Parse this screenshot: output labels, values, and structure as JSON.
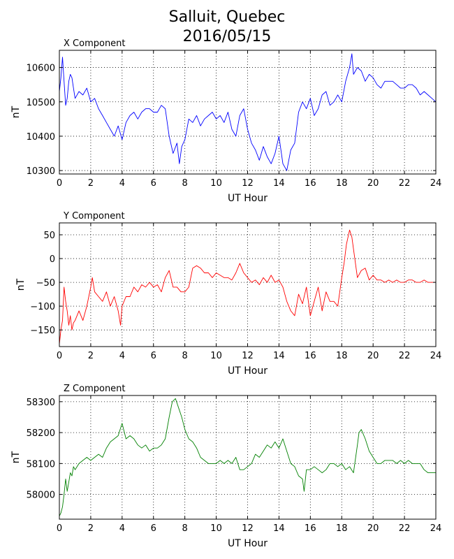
{
  "figure": {
    "title_line1": "Salluit, Quebec",
    "title_line2": "2016/05/15"
  },
  "chart_data": [
    {
      "type": "line",
      "title": "X Component",
      "xlabel": "UT Hour",
      "ylabel": "nT",
      "xlim": [
        0,
        24
      ],
      "ylim": [
        10290,
        10650
      ],
      "xticks": [
        0,
        2,
        4,
        6,
        8,
        10,
        12,
        14,
        16,
        18,
        20,
        22,
        24
      ],
      "yticks": [
        10300,
        10400,
        10500,
        10600
      ],
      "grid": true,
      "color": "#0000ff",
      "series": [
        {
          "x": [
            0,
            0.1,
            0.2,
            0.3,
            0.4,
            0.5,
            0.6,
            0.7,
            0.8,
            0.9,
            1.0,
            1.25,
            1.5,
            1.75,
            2.0,
            2.25,
            2.5,
            2.75,
            3.0,
            3.25,
            3.5,
            3.75,
            4.0,
            4.25,
            4.5,
            4.75,
            5.0,
            5.25,
            5.5,
            5.75,
            6.0,
            6.25,
            6.5,
            6.75,
            7.0,
            7.25,
            7.5,
            7.65,
            7.8,
            8.0,
            8.25,
            8.5,
            8.75,
            9.0,
            9.25,
            9.5,
            9.75,
            10.0,
            10.25,
            10.5,
            10.75,
            11.0,
            11.25,
            11.5,
            11.75,
            12.0,
            12.25,
            12.5,
            12.75,
            13.0,
            13.25,
            13.5,
            13.75,
            14.0,
            14.25,
            14.5,
            14.75,
            15.0,
            15.25,
            15.5,
            15.75,
            16.0,
            16.25,
            16.5,
            16.75,
            17.0,
            17.25,
            17.5,
            17.75,
            18.0,
            18.25,
            18.5,
            18.65,
            18.75,
            19.0,
            19.25,
            19.5,
            19.75,
            20.0,
            20.25,
            20.5,
            20.75,
            21.0,
            21.25,
            21.5,
            21.75,
            22.0,
            22.25,
            22.5,
            22.75,
            23.0,
            23.25,
            23.5,
            23.75,
            24.0
          ],
          "y": [
            10530,
            10570,
            10630,
            10560,
            10490,
            10510,
            10560,
            10580,
            10570,
            10540,
            10510,
            10530,
            10520,
            10540,
            10500,
            10510,
            10480,
            10460,
            10440,
            10420,
            10400,
            10430,
            10390,
            10440,
            10460,
            10470,
            10450,
            10470,
            10480,
            10480,
            10470,
            10470,
            10490,
            10480,
            10400,
            10350,
            10380,
            10320,
            10370,
            10390,
            10450,
            10440,
            10460,
            10430,
            10450,
            10460,
            10470,
            10450,
            10460,
            10440,
            10470,
            10420,
            10400,
            10460,
            10480,
            10420,
            10380,
            10360,
            10330,
            10370,
            10340,
            10320,
            10350,
            10400,
            10320,
            10300,
            10360,
            10380,
            10470,
            10500,
            10480,
            10510,
            10460,
            10480,
            10520,
            10530,
            10490,
            10500,
            10520,
            10500,
            10560,
            10600,
            10640,
            10580,
            10600,
            10590,
            10560,
            10580,
            10570,
            10550,
            10540,
            10560,
            10560,
            10560,
            10550,
            10540,
            10540,
            10550,
            10550,
            10540,
            10520,
            10530,
            10520,
            10510,
            10500
          ]
        }
      ]
    },
    {
      "type": "line",
      "title": "Y Component",
      "xlabel": "UT Hour",
      "ylabel": "nT",
      "xlim": [
        0,
        24
      ],
      "ylim": [
        -185,
        75
      ],
      "xticks": [
        0,
        2,
        4,
        6,
        8,
        10,
        12,
        14,
        16,
        18,
        20,
        22,
        24
      ],
      "yticks": [
        -150,
        -100,
        -50,
        0,
        50
      ],
      "grid": true,
      "color": "#ff0000",
      "series": [
        {
          "x": [
            0,
            0.1,
            0.2,
            0.3,
            0.4,
            0.5,
            0.6,
            0.7,
            0.8,
            0.9,
            1.0,
            1.25,
            1.5,
            1.75,
            2.0,
            2.1,
            2.25,
            2.5,
            2.75,
            3.0,
            3.25,
            3.5,
            3.75,
            3.9,
            4.0,
            4.25,
            4.5,
            4.75,
            5.0,
            5.25,
            5.5,
            5.75,
            6.0,
            6.25,
            6.5,
            6.75,
            7.0,
            7.25,
            7.5,
            7.75,
            8.0,
            8.25,
            8.5,
            8.75,
            9.0,
            9.25,
            9.5,
            9.75,
            10.0,
            10.25,
            10.5,
            10.75,
            11.0,
            11.25,
            11.5,
            11.75,
            12.0,
            12.25,
            12.5,
            12.75,
            13.0,
            13.25,
            13.5,
            13.75,
            14.0,
            14.25,
            14.5,
            14.75,
            15.0,
            15.25,
            15.5,
            15.75,
            16.0,
            16.25,
            16.5,
            16.75,
            17.0,
            17.25,
            17.5,
            17.75,
            18.0,
            18.15,
            18.3,
            18.5,
            18.65,
            18.75,
            19.0,
            19.25,
            19.5,
            19.75,
            20.0,
            20.25,
            20.5,
            20.75,
            21.0,
            21.25,
            21.5,
            21.75,
            22.0,
            22.25,
            22.5,
            22.75,
            23.0,
            23.25,
            23.5,
            23.75,
            24.0
          ],
          "y": [
            -180,
            -150,
            -130,
            -60,
            -90,
            -110,
            -140,
            -120,
            -150,
            -135,
            -130,
            -110,
            -130,
            -100,
            -60,
            -40,
            -70,
            -80,
            -90,
            -70,
            -100,
            -80,
            -110,
            -140,
            -100,
            -80,
            -80,
            -60,
            -70,
            -55,
            -60,
            -50,
            -60,
            -55,
            -70,
            -40,
            -25,
            -60,
            -60,
            -70,
            -70,
            -60,
            -20,
            -15,
            -20,
            -30,
            -30,
            -40,
            -30,
            -35,
            -40,
            -40,
            -45,
            -30,
            -10,
            -30,
            -40,
            -50,
            -45,
            -55,
            -40,
            -50,
            -35,
            -50,
            -45,
            -60,
            -90,
            -110,
            -120,
            -75,
            -95,
            -60,
            -120,
            -90,
            -60,
            -110,
            -70,
            -90,
            -90,
            -100,
            -40,
            -10,
            30,
            60,
            45,
            20,
            -40,
            -25,
            -20,
            -45,
            -35,
            -45,
            -45,
            -50,
            -45,
            -50,
            -45,
            -50,
            -50,
            -45,
            -45,
            -50,
            -50,
            -45,
            -50,
            -50,
            -50
          ]
        }
      ]
    },
    {
      "type": "line",
      "title": "Z Component",
      "xlabel": "UT Hour",
      "ylabel": "nT",
      "xlim": [
        0,
        24
      ],
      "ylim": [
        57920,
        58320
      ],
      "xticks": [
        0,
        2,
        4,
        6,
        8,
        10,
        12,
        14,
        16,
        18,
        20,
        22,
        24
      ],
      "yticks": [
        58000,
        58100,
        58200,
        58300
      ],
      "grid": true,
      "color": "#008000",
      "series": [
        {
          "x": [
            0,
            0.1,
            0.2,
            0.3,
            0.4,
            0.5,
            0.6,
            0.7,
            0.8,
            0.9,
            1.0,
            1.25,
            1.5,
            1.75,
            2.0,
            2.25,
            2.5,
            2.75,
            3.0,
            3.25,
            3.5,
            3.75,
            4.0,
            4.25,
            4.5,
            4.75,
            5.0,
            5.25,
            5.5,
            5.75,
            6.0,
            6.25,
            6.5,
            6.75,
            7.0,
            7.2,
            7.4,
            7.6,
            7.8,
            8.0,
            8.25,
            8.5,
            8.75,
            9.0,
            9.25,
            9.5,
            9.75,
            10.0,
            10.25,
            10.5,
            10.75,
            11.0,
            11.25,
            11.5,
            11.75,
            12.0,
            12.25,
            12.5,
            12.75,
            13.0,
            13.25,
            13.5,
            13.75,
            14.0,
            14.25,
            14.5,
            14.75,
            15.0,
            15.25,
            15.5,
            15.6,
            15.75,
            16.0,
            16.25,
            16.5,
            16.75,
            17.0,
            17.25,
            17.5,
            17.75,
            18.0,
            18.25,
            18.5,
            18.75,
            19.0,
            19.1,
            19.25,
            19.5,
            19.75,
            20.0,
            20.25,
            20.5,
            20.75,
            21.0,
            21.25,
            21.5,
            21.75,
            22.0,
            22.25,
            22.5,
            22.75,
            23.0,
            23.25,
            23.5,
            23.75,
            24.0
          ],
          "y": [
            57930,
            57940,
            57960,
            58000,
            58050,
            58010,
            58040,
            58070,
            58060,
            58090,
            58080,
            58100,
            58110,
            58120,
            58110,
            58120,
            58130,
            58120,
            58150,
            58170,
            58180,
            58190,
            58230,
            58180,
            58190,
            58180,
            58160,
            58150,
            58160,
            58140,
            58150,
            58150,
            58160,
            58180,
            58250,
            58300,
            58310,
            58280,
            58250,
            58210,
            58180,
            58170,
            58150,
            58120,
            58110,
            58100,
            58100,
            58100,
            58110,
            58100,
            58110,
            58100,
            58120,
            58080,
            58080,
            58090,
            58100,
            58130,
            58120,
            58140,
            58160,
            58150,
            58170,
            58150,
            58180,
            58140,
            58100,
            58090,
            58060,
            58050,
            58010,
            58080,
            58080,
            58090,
            58080,
            58070,
            58080,
            58100,
            58100,
            58090,
            58100,
            58080,
            58090,
            58070,
            58160,
            58200,
            58210,
            58180,
            58140,
            58120,
            58100,
            58100,
            58110,
            58110,
            58110,
            58100,
            58110,
            58100,
            58110,
            58100,
            58100,
            58100,
            58080,
            58070,
            58070,
            58070
          ]
        }
      ]
    }
  ]
}
